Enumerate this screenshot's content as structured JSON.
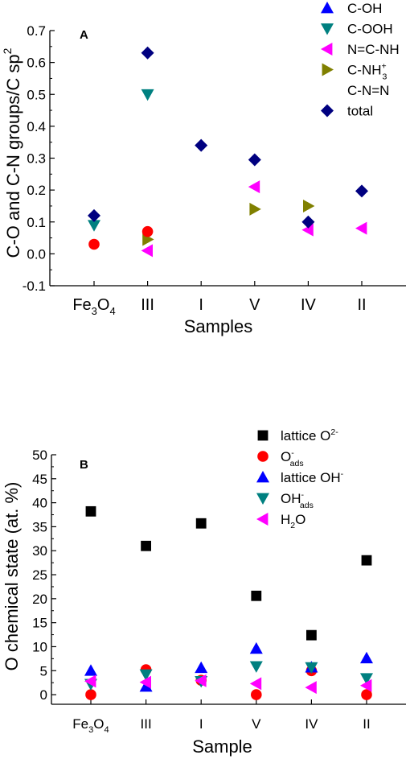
{
  "chart_data": [
    {
      "type": "scatter",
      "panel_label": "A",
      "ylabel": "C-O and C-N groups/C sp",
      "ylabel_sup": "2",
      "xlabel": "Samples",
      "categories": [
        {
          "label": "Fe",
          "sub": "3",
          "tail": "O",
          "sub2": "4"
        },
        {
          "label": "III"
        },
        {
          "label": "I"
        },
        {
          "label": "V"
        },
        {
          "label": "IV"
        },
        {
          "label": "II"
        }
      ],
      "ylim": [
        -0.1,
        0.7
      ],
      "yticks": [
        "-0.1",
        "0.0",
        "0.1",
        "0.2",
        "0.3",
        "0.4",
        "0.5",
        "0.6",
        "0.7"
      ],
      "legend_position": "top-right",
      "series": [
        {
          "name": "C-OH",
          "marker": "triangle-up",
          "color": "#0000ff",
          "values": [
            null,
            null,
            null,
            null,
            null,
            null
          ]
        },
        {
          "name": "C-OOH",
          "marker": "triangle-down",
          "color": "#008080",
          "values": [
            0.09,
            0.5,
            null,
            null,
            null,
            null
          ]
        },
        {
          "name": "N=C-NH",
          "marker": "triangle-left",
          "color": "#ff00ff",
          "values": [
            null,
            0.01,
            null,
            0.21,
            0.075,
            0.08
          ]
        },
        {
          "name": "C-NH",
          "name_sub": "3",
          "name_sup": "+",
          "marker": "triangle-right",
          "color": "#808000",
          "values": [
            null,
            0.045,
            null,
            0.14,
            0.15,
            null
          ]
        },
        {
          "name": "C-N=N",
          "marker": "circle",
          "color": "#ff0000",
          "values": [
            0.03,
            0.07,
            null,
            null,
            null,
            null
          ]
        },
        {
          "name": "total",
          "marker": "diamond",
          "color": "#000080",
          "values": [
            0.12,
            0.63,
            0.34,
            0.295,
            0.1,
            0.197
          ]
        }
      ]
    },
    {
      "type": "scatter",
      "panel_label": "B",
      "ylabel": "O chemical state (at. %)",
      "xlabel": "Sample",
      "categories": [
        {
          "label": "Fe",
          "sub": "3",
          "tail": "O",
          "sub2": "4"
        },
        {
          "label": "III"
        },
        {
          "label": "I"
        },
        {
          "label": "V"
        },
        {
          "label": "IV"
        },
        {
          "label": "II"
        }
      ],
      "ylim": [
        -2,
        50
      ],
      "yticks": [
        "0",
        "5",
        "10",
        "15",
        "20",
        "25",
        "30",
        "35",
        "40",
        "45",
        "50"
      ],
      "legend_position": "top-right",
      "series": [
        {
          "name": "lattice O",
          "name_sup": "2-",
          "marker": "square",
          "color": "#000000",
          "values": [
            38.2,
            31.0,
            35.7,
            20.6,
            12.4,
            28.0
          ]
        },
        {
          "name": "O",
          "name_sup": "-",
          "name_sub": "ads",
          "marker": "circle",
          "color": "#ff0000",
          "values": [
            0.0,
            5.2,
            3.0,
            0.0,
            5.0,
            0.0
          ]
        },
        {
          "name": "lattice OH",
          "name_sup": "-",
          "marker": "triangle-up",
          "color": "#0000ff",
          "values": [
            5.0,
            1.7,
            5.6,
            9.6,
            5.7,
            7.6
          ]
        },
        {
          "name": "OH",
          "name_sup": "-",
          "name_sub": "ads",
          "marker": "triangle-down",
          "color": "#008080",
          "values": [
            2.2,
            4.2,
            2.8,
            5.9,
            5.7,
            3.4
          ]
        },
        {
          "name": "H",
          "name_sub": "2",
          "name_tail": "O",
          "marker": "triangle-left",
          "color": "#ff00ff",
          "values": [
            2.8,
            2.6,
            2.9,
            2.3,
            1.5,
            1.9
          ]
        }
      ]
    }
  ]
}
